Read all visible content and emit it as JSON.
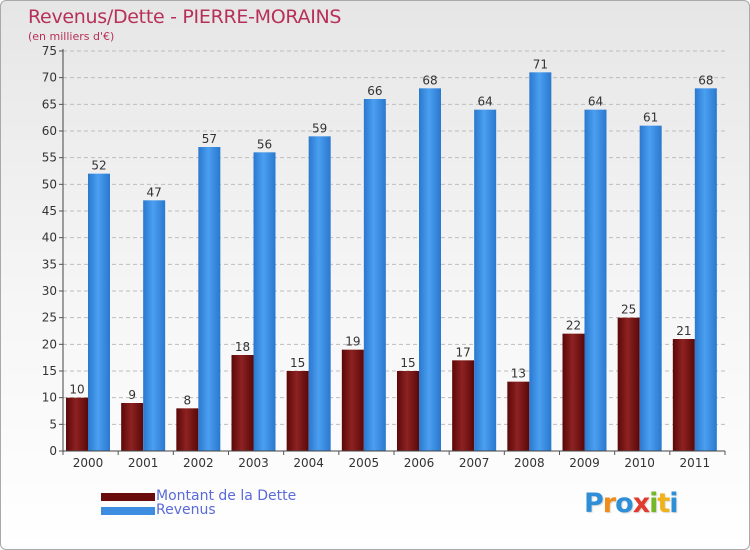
{
  "title": "Revenus/Dette - PIERRE-MORAINS",
  "subtitle": "(en milliers d'€)",
  "logo": {
    "letters": [
      "P",
      "r",
      "o",
      "x",
      "i",
      "t",
      "i"
    ],
    "colors": [
      "#2f8fd6",
      "#f08c1a",
      "#2f8fd6",
      "#e03b2e",
      "#74b82a",
      "#f0b21a",
      "#2f8fd6"
    ]
  },
  "legend": [
    {
      "label": "Montant de la Dette",
      "color": "#6b0c0c"
    },
    {
      "label": "Revenus",
      "color": "#3d8ee0"
    }
  ],
  "chart_data": {
    "type": "bar",
    "title": "Revenus/Dette - PIERRE-MORAINS",
    "ylabel": "(en milliers d'€)",
    "xlabel": "",
    "categories": [
      "2000",
      "2001",
      "2002",
      "2003",
      "2004",
      "2005",
      "2006",
      "2007",
      "2008",
      "2009",
      "2010",
      "2011"
    ],
    "series": [
      {
        "name": "Montant de la Dette",
        "color": "#7a1515",
        "values": [
          10,
          9,
          8,
          18,
          15,
          19,
          15,
          17,
          13,
          22,
          25,
          21
        ]
      },
      {
        "name": "Revenus",
        "color": "#3d8ee0",
        "values": [
          52,
          47,
          57,
          56,
          59,
          66,
          68,
          64,
          71,
          64,
          61,
          68
        ]
      }
    ],
    "ylim": [
      0,
      75
    ],
    "yticks": [
      0,
      5,
      10,
      15,
      20,
      25,
      30,
      35,
      40,
      45,
      50,
      55,
      60,
      65,
      70,
      75
    ],
    "grid": true,
    "legend_position": "bottom-left"
  }
}
